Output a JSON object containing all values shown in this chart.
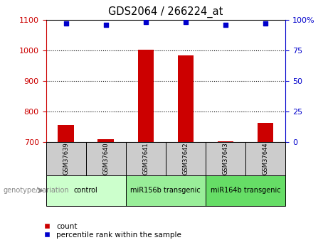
{
  "title": "GDS2064 / 266224_at",
  "samples": [
    "GSM37639",
    "GSM37640",
    "GSM37641",
    "GSM37642",
    "GSM37643",
    "GSM37644"
  ],
  "count_values": [
    757,
    710,
    1002,
    982,
    703,
    762
  ],
  "percentile_values": [
    97,
    96,
    98,
    98,
    96,
    97
  ],
  "ylim_left": [
    700,
    1100
  ],
  "ylim_right": [
    0,
    100
  ],
  "yticks_left": [
    700,
    800,
    900,
    1000,
    1100
  ],
  "yticks_right": [
    0,
    25,
    50,
    75,
    100
  ],
  "bar_color": "#cc0000",
  "dot_color": "#0000cc",
  "groups": [
    {
      "label": "control",
      "start": 0,
      "end": 1,
      "color": "#ccffcc"
    },
    {
      "label": "miR156b transgenic",
      "start": 2,
      "end": 3,
      "color": "#99ee99"
    },
    {
      "label": "miR164b transgenic",
      "start": 4,
      "end": 5,
      "color": "#66dd66"
    }
  ],
  "sample_row_color": "#cccccc",
  "left_axis_color": "#cc0000",
  "right_axis_color": "#0000cc",
  "legend_count_label": "count",
  "legend_percentile_label": "percentile rank within the sample",
  "genotype_label": "genotype/variation",
  "bar_width": 0.4,
  "baseline": 700,
  "grid_lines": [
    800,
    900,
    1000
  ]
}
